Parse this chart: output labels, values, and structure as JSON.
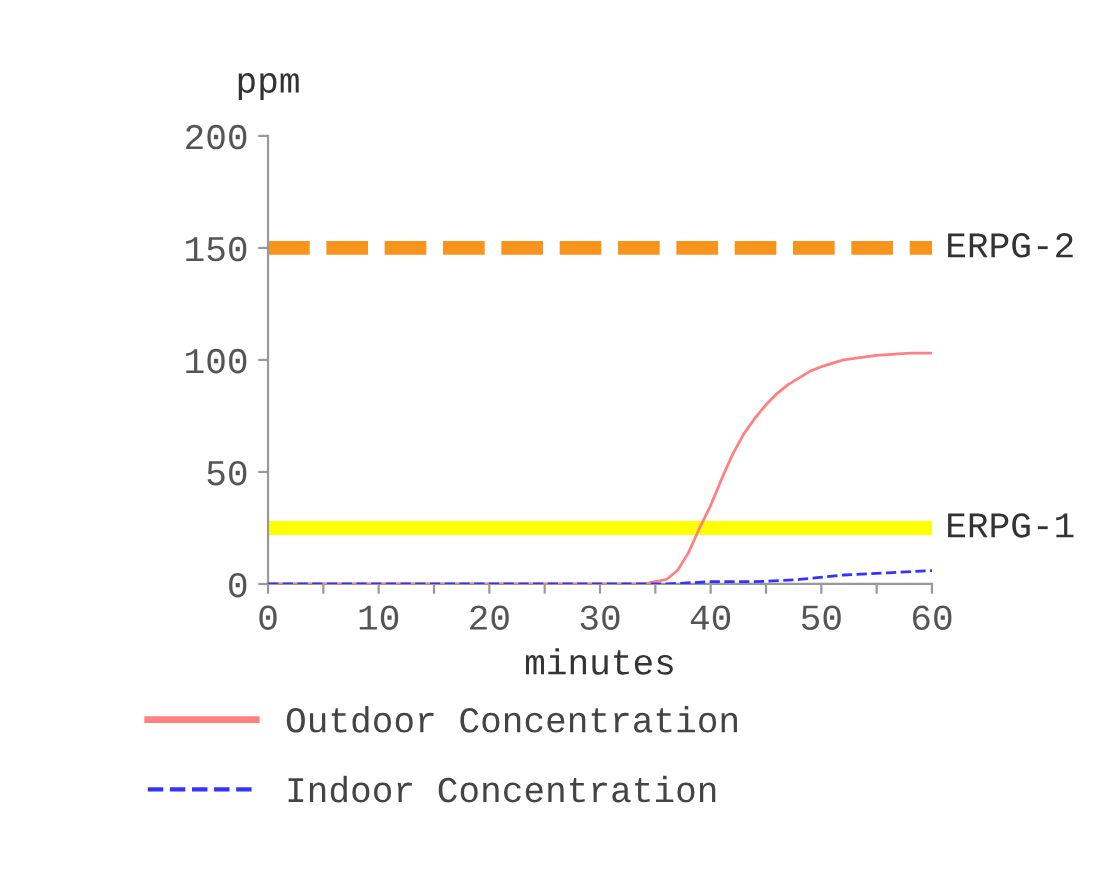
{
  "chart_data": {
    "type": "line",
    "xlabel": "minutes",
    "ylabel": "ppm",
    "xlim": [
      0,
      60
    ],
    "ylim": [
      0,
      200
    ],
    "xticks": [
      0,
      {
        "value": 5,
        "label": null
      },
      10,
      {
        "value": 15,
        "label": null
      },
      20,
      {
        "value": 25,
        "label": null
      },
      30,
      {
        "value": 35,
        "label": null
      },
      40,
      {
        "value": 45,
        "label": null
      },
      50,
      {
        "value": 55,
        "label": null
      },
      60
    ],
    "yticks": [
      0,
      50,
      100,
      150,
      200
    ],
    "series": [
      {
        "name": "Outdoor Concentration",
        "color": "#ff8080",
        "line_style": "solid",
        "x": [
          0,
          10,
          20,
          30,
          34,
          35,
          36,
          37,
          38,
          39,
          40,
          41,
          42,
          43,
          44,
          45,
          46,
          47,
          48,
          49,
          50,
          52,
          55,
          58,
          60
        ],
        "values": [
          0,
          0,
          0,
          0,
          0,
          1,
          2,
          6,
          14,
          25,
          35,
          47,
          58,
          67,
          74,
          80,
          85,
          89,
          92,
          95,
          97,
          100,
          102,
          103,
          103
        ]
      },
      {
        "name": "Indoor Concentration",
        "color": "#3333ff",
        "line_style": "dashed",
        "x": [
          0,
          10,
          20,
          30,
          33,
          36,
          40,
          44,
          48,
          52,
          56,
          60
        ],
        "values": [
          0,
          0,
          0,
          0,
          0,
          0,
          1,
          1,
          2,
          4,
          5,
          6
        ]
      }
    ],
    "ref_lines": [
      {
        "axis": "y",
        "value": 150,
        "label": "ERPG-2",
        "color": "#f7941d",
        "line_style": "dashed"
      },
      {
        "axis": "y",
        "value": 25,
        "label": "ERPG-1",
        "color": "#ffff00",
        "line_style": "solid"
      }
    ],
    "legend": "bottom",
    "grid": false
  }
}
